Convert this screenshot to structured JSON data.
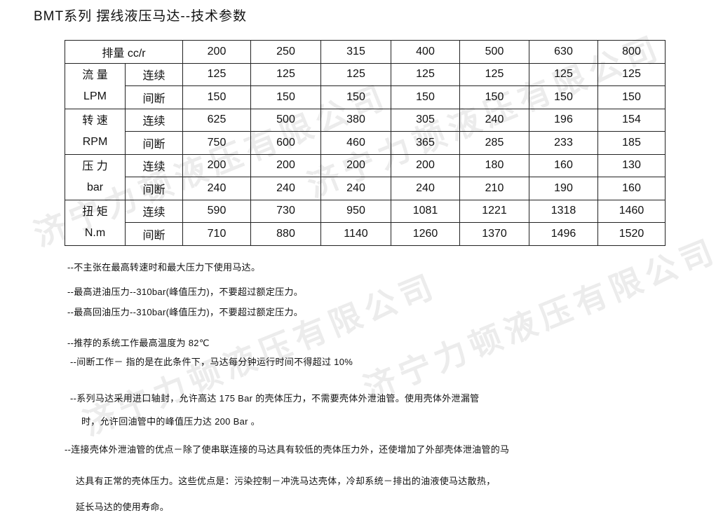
{
  "title": "BMT系列 摆线液压马达--技术参数",
  "watermark": "济宁力顿液压有限公司",
  "table": {
    "header_label": "排量 cc/r",
    "displacements": [
      "200",
      "250",
      "315",
      "400",
      "500",
      "630",
      "800"
    ],
    "groups": [
      {
        "name": "流 量",
        "unit": "LPM",
        "rows": [
          {
            "label": "连续",
            "values": [
              "125",
              "125",
              "125",
              "125",
              "125",
              "125",
              "125"
            ]
          },
          {
            "label": "间断",
            "values": [
              "150",
              "150",
              "150",
              "150",
              "150",
              "150",
              "150"
            ]
          }
        ]
      },
      {
        "name": "转 速",
        "unit": "RPM",
        "rows": [
          {
            "label": "连续",
            "values": [
              "625",
              "500",
              "380",
              "305",
              "240",
              "196",
              "154"
            ]
          },
          {
            "label": "间断",
            "values": [
              "750",
              "600",
              "460",
              "365",
              "285",
              "233",
              "185"
            ]
          }
        ]
      },
      {
        "name": "压 力",
        "unit": "bar",
        "rows": [
          {
            "label": "连续",
            "values": [
              "200",
              "200",
              "200",
              "200",
              "180",
              "160",
              "130"
            ]
          },
          {
            "label": "间断",
            "values": [
              "240",
              "240",
              "240",
              "240",
              "210",
              "190",
              "160"
            ]
          }
        ]
      },
      {
        "name": "扭 矩",
        "unit": "N.m",
        "rows": [
          {
            "label": "连续",
            "values": [
              "590",
              "730",
              "950",
              "1081",
              "1221",
              "1318",
              "1460"
            ]
          },
          {
            "label": "间断",
            "values": [
              "710",
              "880",
              "1140",
              "1260",
              "1370",
              "1496",
              "1520"
            ]
          }
        ]
      }
    ]
  },
  "notes": [
    "--不主张在最高转速时和最大压力下使用马达。",
    "--最高进油压力--310bar(峰值压力)，不要超过额定压力。",
    "--最高回油压力--310bar(峰值压力)，不要超过额定压力。",
    "--推荐的系统工作最高温度为 82℃",
    "--间断工作－ 指的是在此条件下，马达每分钟运行时间不得超过 10%",
    "--系列马达采用进口轴封，允许高达 175 Bar 的壳体压力，不需要壳体外泄油管。使用壳体外泄漏管",
    "时，允许回油管中的峰值压力达 200 Bar 。",
    "--连接壳体外泄油管的优点－除了使串联连接的马达具有较低的壳体压力外，还使增加了外部壳体泄油管的马",
    "达具有正常的壳体压力。这些优点是：污染控制－冲洗马达壳体，冷却系统－排出的油液使马达散热，",
    "延长马达的使用寿命。"
  ]
}
